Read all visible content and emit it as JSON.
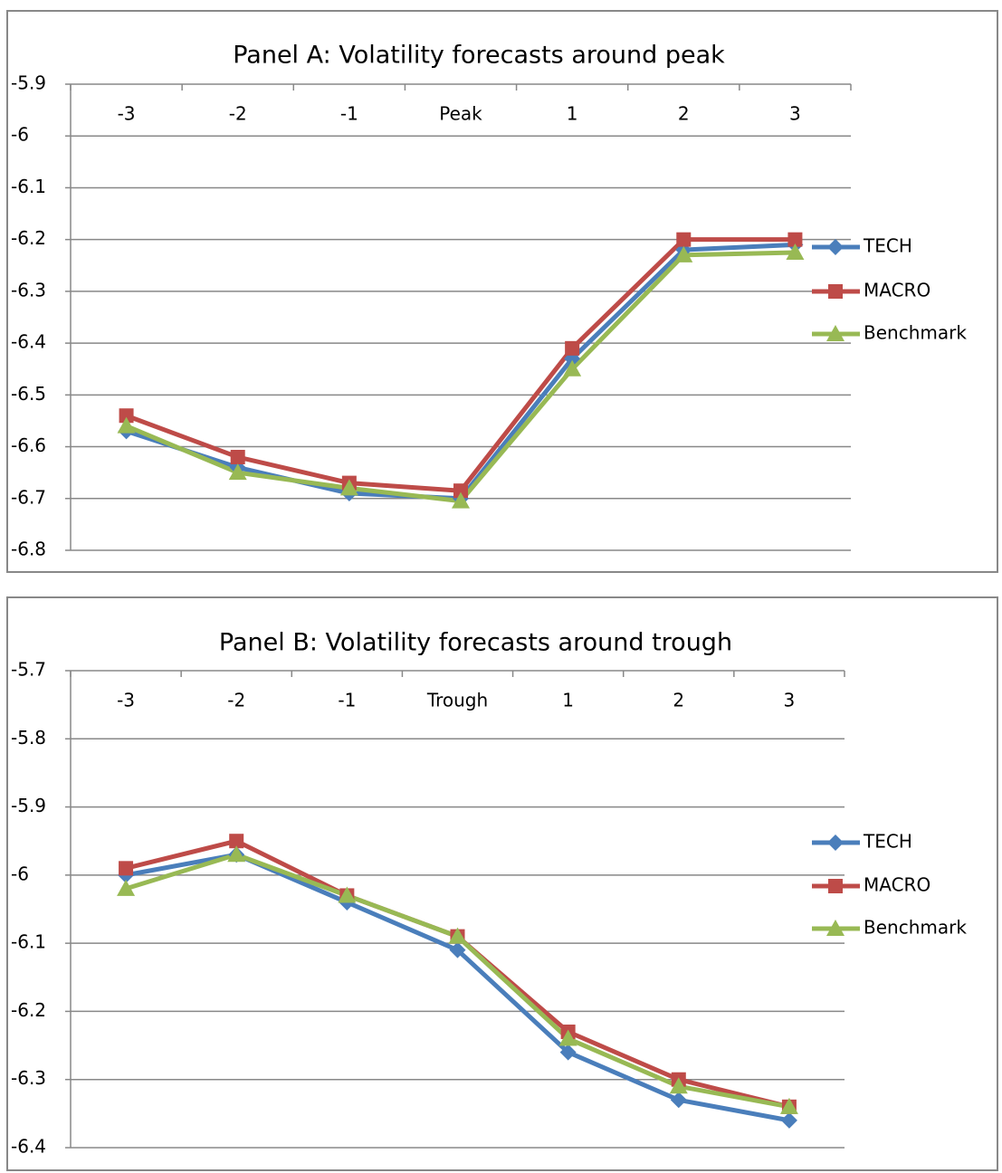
{
  "chart_data": [
    {
      "type": "line",
      "title": "Panel A: Volatility forecasts around peak",
      "categories": [
        "-3",
        "-2",
        "-1",
        "Peak",
        "1",
        "2",
        "3"
      ],
      "series": [
        {
          "name": "TECH",
          "color": "#4a7ebb",
          "marker": "diamond",
          "values": [
            -6.57,
            -6.64,
            -6.69,
            -6.7,
            -6.43,
            -6.22,
            -6.21
          ]
        },
        {
          "name": "MACRO",
          "color": "#be4b48",
          "marker": "square",
          "values": [
            -6.54,
            -6.62,
            -6.67,
            -6.685,
            -6.41,
            -6.2,
            -6.2
          ]
        },
        {
          "name": "Benchmark",
          "color": "#98b954",
          "marker": "triangle",
          "values": [
            -6.56,
            -6.65,
            -6.68,
            -6.705,
            -6.45,
            -6.23,
            -6.225
          ]
        }
      ],
      "ylim": [
        -6.8,
        -5.9
      ],
      "yticks": [
        -5.9,
        -6,
        -6.1,
        -6.2,
        -6.3,
        -6.4,
        -6.5,
        -6.6,
        -6.7,
        -6.8
      ],
      "grid": true,
      "legend": "right"
    },
    {
      "type": "line",
      "title": "Panel B: Volatility forecasts around trough",
      "categories": [
        "-3",
        "-2",
        "-1",
        "Trough",
        "1",
        "2",
        "3"
      ],
      "series": [
        {
          "name": "TECH",
          "color": "#4a7ebb",
          "marker": "diamond",
          "values": [
            -6.0,
            -5.97,
            -6.04,
            -6.11,
            -6.26,
            -6.33,
            -6.36
          ]
        },
        {
          "name": "MACRO",
          "color": "#be4b48",
          "marker": "square",
          "values": [
            -5.99,
            -5.95,
            -6.03,
            -6.09,
            -6.23,
            -6.3,
            -6.34
          ]
        },
        {
          "name": "Benchmark",
          "color": "#98b954",
          "marker": "triangle",
          "values": [
            -6.02,
            -5.97,
            -6.03,
            -6.09,
            -6.24,
            -6.31,
            -6.34
          ]
        }
      ],
      "ylim": [
        -6.4,
        -5.7
      ],
      "yticks": [
        -5.7,
        -5.8,
        -5.9,
        -6,
        -6.1,
        -6.2,
        -6.3,
        -6.4
      ],
      "grid": true,
      "legend": "right"
    }
  ]
}
